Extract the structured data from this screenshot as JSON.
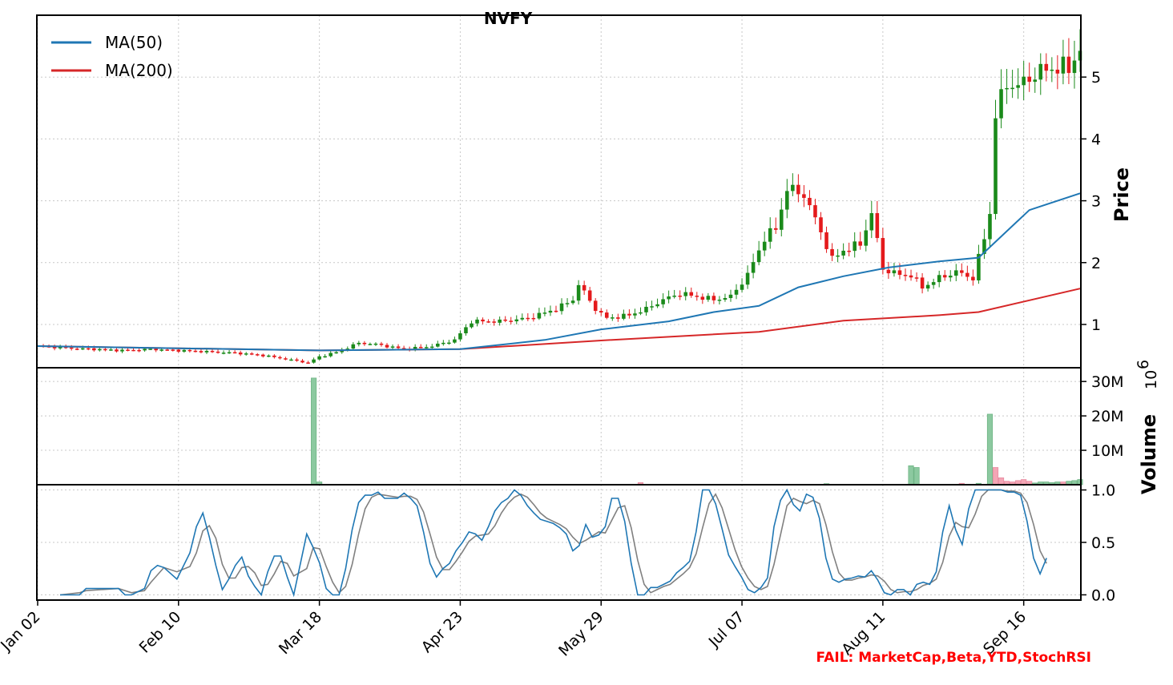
{
  "chart_data": {
    "type": "candlestick",
    "title": "NVFY",
    "price_axis": {
      "label": "Price",
      "ylim": [
        0.3,
        6.0
      ],
      "ticks": [
        1,
        2,
        3,
        4,
        5
      ],
      "grid": true
    },
    "volume_axis": {
      "label": "Volume",
      "multiplier_label": "10^6",
      "ylim": [
        0,
        34
      ],
      "ticks": [
        {
          "value": 10,
          "label": "10M"
        },
        {
          "value": 20,
          "label": "20M"
        },
        {
          "value": 30,
          "label": "30M"
        }
      ]
    },
    "stoch_axis": {
      "ylim": [
        -0.05,
        1.05
      ],
      "ticks": [
        {
          "value": 0.0,
          "label": "0.0"
        },
        {
          "value": 0.5,
          "label": "0.5"
        },
        {
          "value": 1.0,
          "label": "1.0"
        }
      ]
    },
    "x_axis": {
      "range": [
        0,
        185
      ],
      "ticks": [
        {
          "index": 0,
          "label": "Jan 02"
        },
        {
          "index": 25,
          "label": "Feb 10"
        },
        {
          "index": 50,
          "label": "Mar 18"
        },
        {
          "index": 75,
          "label": "Apr 23"
        },
        {
          "index": 100,
          "label": "May 29"
        },
        {
          "index": 125,
          "label": "Jul 07"
        },
        {
          "index": 150,
          "label": "Aug 11"
        },
        {
          "index": 175,
          "label": "Sep 16"
        }
      ]
    },
    "legend": {
      "placement": "upper-left",
      "entries": [
        {
          "name": "MA(50)",
          "color": "#1f77b4"
        },
        {
          "name": "MA(200)",
          "color": "#d62728"
        }
      ]
    },
    "colors": {
      "up": "#1a8a1a",
      "down": "#e41a1c",
      "volume_up": "#8cc9a0",
      "volume_down": "#f4a6b5",
      "stoch_k": "#1f77b4",
      "stoch_d": "#808080"
    },
    "close_anchors": [
      [
        0,
        0.65
      ],
      [
        5,
        0.62
      ],
      [
        10,
        0.6
      ],
      [
        15,
        0.58
      ],
      [
        20,
        0.6
      ],
      [
        25,
        0.58
      ],
      [
        30,
        0.56
      ],
      [
        35,
        0.54
      ],
      [
        40,
        0.5
      ],
      [
        44,
        0.44
      ],
      [
        48,
        0.38
      ],
      [
        50,
        0.48
      ],
      [
        53,
        0.55
      ],
      [
        57,
        0.7
      ],
      [
        60,
        0.68
      ],
      [
        65,
        0.6
      ],
      [
        70,
        0.65
      ],
      [
        74,
        0.75
      ],
      [
        77,
        1.05
      ],
      [
        82,
        1.05
      ],
      [
        87,
        1.1
      ],
      [
        92,
        1.25
      ],
      [
        95,
        1.4
      ],
      [
        96,
        1.65
      ],
      [
        99,
        1.25
      ],
      [
        101,
        1.1
      ],
      [
        105,
        1.15
      ],
      [
        108,
        1.25
      ],
      [
        111,
        1.4
      ],
      [
        114,
        1.5
      ],
      [
        117,
        1.45
      ],
      [
        120,
        1.4
      ],
      [
        123,
        1.45
      ],
      [
        126,
        1.8
      ],
      [
        129,
        2.4
      ],
      [
        131,
        2.55
      ],
      [
        133,
        3.2
      ],
      [
        136,
        3.1
      ],
      [
        139,
        2.5
      ],
      [
        141,
        2.05
      ],
      [
        143,
        2.2
      ],
      [
        146,
        2.3
      ],
      [
        148,
        2.8
      ],
      [
        150,
        1.9
      ],
      [
        153,
        1.8
      ],
      [
        155,
        1.8
      ],
      [
        157,
        1.6
      ],
      [
        160,
        1.75
      ],
      [
        163,
        1.85
      ],
      [
        166,
        1.75
      ],
      [
        168,
        2.4
      ],
      [
        169,
        2.8
      ],
      [
        170,
        4.4
      ],
      [
        172,
        4.9
      ],
      [
        174,
        4.85
      ],
      [
        177,
        5.05
      ],
      [
        180,
        5.15
      ],
      [
        183,
        5.15
      ],
      [
        185,
        5.45
      ]
    ],
    "ma50": [
      [
        0,
        0.65
      ],
      [
        50,
        0.58
      ],
      [
        75,
        0.6
      ],
      [
        90,
        0.75
      ],
      [
        100,
        0.92
      ],
      [
        112,
        1.05
      ],
      [
        120,
        1.2
      ],
      [
        128,
        1.3
      ],
      [
        135,
        1.6
      ],
      [
        143,
        1.78
      ],
      [
        151,
        1.92
      ],
      [
        160,
        2.02
      ],
      [
        167,
        2.08
      ],
      [
        176,
        2.85
      ],
      [
        185,
        3.12
      ]
    ],
    "ma200": [
      [
        0,
        0.65
      ],
      [
        50,
        0.58
      ],
      [
        75,
        0.6
      ],
      [
        100,
        0.74
      ],
      [
        128,
        0.88
      ],
      [
        143,
        1.06
      ],
      [
        160,
        1.15
      ],
      [
        167,
        1.2
      ],
      [
        185,
        1.58
      ]
    ],
    "volume": [
      [
        49,
        31.0,
        "up"
      ],
      [
        50,
        0.8,
        "up"
      ],
      [
        107,
        0.6,
        "down"
      ],
      [
        140,
        0.3,
        "up"
      ],
      [
        155,
        5.5,
        "up"
      ],
      [
        156,
        5.0,
        "up"
      ],
      [
        164,
        0.4,
        "down"
      ],
      [
        167,
        0.4,
        "up"
      ],
      [
        169,
        20.5,
        "up"
      ],
      [
        170,
        5.0,
        "down"
      ],
      [
        171,
        2.0,
        "down"
      ],
      [
        172,
        1.0,
        "down"
      ],
      [
        173,
        0.8,
        "down"
      ],
      [
        174,
        1.2,
        "down"
      ],
      [
        175,
        1.5,
        "down"
      ],
      [
        176,
        1.0,
        "down"
      ],
      [
        177,
        0.5,
        "up"
      ],
      [
        178,
        0.8,
        "up"
      ],
      [
        179,
        0.8,
        "up"
      ],
      [
        180,
        0.6,
        "up"
      ],
      [
        181,
        0.8,
        "up"
      ],
      [
        182,
        0.8,
        "down"
      ],
      [
        183,
        1.0,
        "up"
      ],
      [
        184,
        1.2,
        "up"
      ],
      [
        185,
        1.5,
        "up"
      ]
    ],
    "stoch_k": [
      [
        4,
        0.0
      ],
      [
        7,
        0.0
      ],
      [
        8,
        0.06
      ],
      [
        13,
        0.06
      ],
      [
        14,
        0.0
      ],
      [
        15,
        0.0
      ],
      [
        17,
        0.06
      ],
      [
        18,
        0.23
      ],
      [
        19,
        0.28
      ],
      [
        20,
        0.26
      ],
      [
        22,
        0.15
      ],
      [
        24,
        0.4
      ],
      [
        25,
        0.65
      ],
      [
        26,
        0.78
      ],
      [
        27,
        0.55
      ],
      [
        28,
        0.28
      ],
      [
        29,
        0.05
      ],
      [
        30,
        0.15
      ],
      [
        31,
        0.28
      ],
      [
        32,
        0.36
      ],
      [
        33,
        0.18
      ],
      [
        34,
        0.08
      ],
      [
        35,
        0.0
      ],
      [
        36,
        0.22
      ],
      [
        37,
        0.37
      ],
      [
        38,
        0.37
      ],
      [
        39,
        0.17
      ],
      [
        40,
        0.0
      ],
      [
        42,
        0.58
      ],
      [
        43,
        0.45
      ],
      [
        44,
        0.3
      ],
      [
        45,
        0.06
      ],
      [
        46,
        0.0
      ],
      [
        47,
        0.0
      ],
      [
        48,
        0.25
      ],
      [
        49,
        0.62
      ],
      [
        50,
        0.88
      ],
      [
        51,
        0.95
      ],
      [
        52,
        0.95
      ],
      [
        53,
        0.98
      ],
      [
        54,
        0.92
      ],
      [
        55,
        0.92
      ],
      [
        56,
        0.92
      ],
      [
        57,
        0.97
      ],
      [
        58,
        0.92
      ],
      [
        59,
        0.85
      ],
      [
        60,
        0.6
      ],
      [
        61,
        0.3
      ],
      [
        62,
        0.17
      ],
      [
        63,
        0.25
      ],
      [
        64,
        0.3
      ],
      [
        65,
        0.42
      ],
      [
        66,
        0.5
      ],
      [
        67,
        0.6
      ],
      [
        68,
        0.58
      ],
      [
        69,
        0.52
      ],
      [
        70,
        0.65
      ],
      [
        71,
        0.8
      ],
      [
        72,
        0.88
      ],
      [
        73,
        0.92
      ],
      [
        74,
        1.0
      ],
      [
        75,
        0.95
      ],
      [
        76,
        0.85
      ],
      [
        77,
        0.78
      ],
      [
        78,
        0.72
      ],
      [
        79,
        0.7
      ],
      [
        80,
        0.68
      ],
      [
        81,
        0.64
      ],
      [
        82,
        0.58
      ],
      [
        83,
        0.42
      ],
      [
        84,
        0.47
      ],
      [
        85,
        0.67
      ],
      [
        86,
        0.55
      ],
      [
        87,
        0.57
      ],
      [
        88,
        0.65
      ],
      [
        89,
        0.92
      ],
      [
        90,
        0.92
      ],
      [
        91,
        0.7
      ],
      [
        92,
        0.3
      ],
      [
        93,
        0.0
      ],
      [
        94,
        0.0
      ],
      [
        95,
        0.07
      ],
      [
        96,
        0.07
      ],
      [
        97,
        0.1
      ],
      [
        98,
        0.13
      ],
      [
        99,
        0.21
      ],
      [
        100,
        0.26
      ],
      [
        101,
        0.32
      ],
      [
        102,
        0.6
      ],
      [
        103,
        1.0
      ],
      [
        104,
        1.0
      ],
      [
        105,
        0.87
      ],
      [
        106,
        0.63
      ],
      [
        107,
        0.38
      ],
      [
        108,
        0.27
      ],
      [
        109,
        0.17
      ],
      [
        110,
        0.05
      ],
      [
        111,
        0.02
      ],
      [
        112,
        0.07
      ],
      [
        113,
        0.16
      ],
      [
        114,
        0.65
      ],
      [
        115,
        0.9
      ],
      [
        116,
        1.0
      ],
      [
        117,
        0.86
      ],
      [
        118,
        0.8
      ],
      [
        119,
        0.96
      ],
      [
        120,
        0.93
      ],
      [
        121,
        0.73
      ],
      [
        122,
        0.35
      ],
      [
        123,
        0.15
      ],
      [
        124,
        0.12
      ],
      [
        125,
        0.15
      ],
      [
        126,
        0.16
      ],
      [
        127,
        0.18
      ],
      [
        128,
        0.17
      ],
      [
        129,
        0.23
      ],
      [
        130,
        0.14
      ],
      [
        131,
        0.02
      ],
      [
        132,
        0.0
      ],
      [
        133,
        0.05
      ],
      [
        134,
        0.05
      ],
      [
        135,
        0.0
      ],
      [
        136,
        0.1
      ],
      [
        137,
        0.12
      ],
      [
        138,
        0.1
      ],
      [
        139,
        0.22
      ],
      [
        140,
        0.6
      ],
      [
        141,
        0.85
      ],
      [
        142,
        0.62
      ],
      [
        143,
        0.48
      ],
      [
        144,
        0.82
      ],
      [
        145,
        1.0
      ],
      [
        146,
        1.0
      ],
      [
        147,
        1.0
      ],
      [
        148,
        1.0
      ],
      [
        149,
        1.0
      ],
      [
        150,
        0.98
      ],
      [
        151,
        0.98
      ],
      [
        152,
        0.95
      ],
      [
        153,
        0.7
      ],
      [
        154,
        0.35
      ],
      [
        155,
        0.2
      ],
      [
        156,
        0.35
      ]
    ],
    "stoch_d": [
      [
        4,
        0.0
      ],
      [
        7,
        0.02
      ],
      [
        8,
        0.04
      ],
      [
        13,
        0.06
      ],
      [
        15,
        0.02
      ],
      [
        17,
        0.04
      ],
      [
        18,
        0.12
      ],
      [
        20,
        0.26
      ],
      [
        22,
        0.22
      ],
      [
        24,
        0.27
      ],
      [
        25,
        0.4
      ],
      [
        26,
        0.61
      ],
      [
        27,
        0.66
      ],
      [
        28,
        0.54
      ],
      [
        29,
        0.29
      ],
      [
        30,
        0.16
      ],
      [
        31,
        0.16
      ],
      [
        32,
        0.26
      ],
      [
        33,
        0.27
      ],
      [
        34,
        0.21
      ],
      [
        35,
        0.09
      ],
      [
        36,
        0.1
      ],
      [
        37,
        0.2
      ],
      [
        38,
        0.32
      ],
      [
        39,
        0.3
      ],
      [
        40,
        0.18
      ],
      [
        42,
        0.25
      ],
      [
        43,
        0.45
      ],
      [
        44,
        0.44
      ],
      [
        45,
        0.27
      ],
      [
        46,
        0.12
      ],
      [
        47,
        0.02
      ],
      [
        48,
        0.08
      ],
      [
        49,
        0.29
      ],
      [
        50,
        0.58
      ],
      [
        51,
        0.82
      ],
      [
        52,
        0.93
      ],
      [
        53,
        0.96
      ],
      [
        54,
        0.95
      ],
      [
        55,
        0.94
      ],
      [
        56,
        0.93
      ],
      [
        57,
        0.94
      ],
      [
        58,
        0.94
      ],
      [
        59,
        0.91
      ],
      [
        60,
        0.79
      ],
      [
        61,
        0.58
      ],
      [
        62,
        0.36
      ],
      [
        63,
        0.24
      ],
      [
        64,
        0.24
      ],
      [
        65,
        0.32
      ],
      [
        66,
        0.41
      ],
      [
        67,
        0.51
      ],
      [
        68,
        0.56
      ],
      [
        69,
        0.57
      ],
      [
        70,
        0.58
      ],
      [
        71,
        0.66
      ],
      [
        72,
        0.78
      ],
      [
        73,
        0.87
      ],
      [
        74,
        0.93
      ],
      [
        75,
        0.96
      ],
      [
        76,
        0.93
      ],
      [
        77,
        0.86
      ],
      [
        78,
        0.78
      ],
      [
        79,
        0.73
      ],
      [
        80,
        0.7
      ],
      [
        81,
        0.67
      ],
      [
        82,
        0.63
      ],
      [
        83,
        0.55
      ],
      [
        84,
        0.49
      ],
      [
        85,
        0.52
      ],
      [
        86,
        0.56
      ],
      [
        87,
        0.6
      ],
      [
        88,
        0.59
      ],
      [
        89,
        0.71
      ],
      [
        90,
        0.83
      ],
      [
        91,
        0.85
      ],
      [
        92,
        0.64
      ],
      [
        93,
        0.33
      ],
      [
        94,
        0.1
      ],
      [
        95,
        0.02
      ],
      [
        96,
        0.05
      ],
      [
        97,
        0.08
      ],
      [
        98,
        0.1
      ],
      [
        99,
        0.15
      ],
      [
        100,
        0.2
      ],
      [
        101,
        0.26
      ],
      [
        102,
        0.39
      ],
      [
        103,
        0.64
      ],
      [
        104,
        0.87
      ],
      [
        105,
        0.96
      ],
      [
        106,
        0.83
      ],
      [
        107,
        0.63
      ],
      [
        108,
        0.43
      ],
      [
        109,
        0.27
      ],
      [
        110,
        0.16
      ],
      [
        111,
        0.08
      ],
      [
        112,
        0.05
      ],
      [
        113,
        0.08
      ],
      [
        114,
        0.29
      ],
      [
        115,
        0.57
      ],
      [
        116,
        0.85
      ],
      [
        117,
        0.92
      ],
      [
        118,
        0.89
      ],
      [
        119,
        0.87
      ],
      [
        120,
        0.9
      ],
      [
        121,
        0.87
      ],
      [
        122,
        0.67
      ],
      [
        123,
        0.41
      ],
      [
        124,
        0.21
      ],
      [
        125,
        0.14
      ],
      [
        126,
        0.14
      ],
      [
        127,
        0.16
      ],
      [
        128,
        0.17
      ],
      [
        129,
        0.19
      ],
      [
        130,
        0.18
      ],
      [
        131,
        0.13
      ],
      [
        132,
        0.05
      ],
      [
        133,
        0.02
      ],
      [
        134,
        0.03
      ],
      [
        135,
        0.03
      ],
      [
        136,
        0.05
      ],
      [
        137,
        0.09
      ],
      [
        138,
        0.11
      ],
      [
        139,
        0.15
      ],
      [
        140,
        0.31
      ],
      [
        141,
        0.56
      ],
      [
        142,
        0.69
      ],
      [
        143,
        0.65
      ],
      [
        144,
        0.64
      ],
      [
        145,
        0.77
      ],
      [
        146,
        0.94
      ],
      [
        147,
        1.0
      ],
      [
        148,
        1.0
      ],
      [
        149,
        1.0
      ],
      [
        150,
        0.99
      ],
      [
        151,
        0.99
      ],
      [
        152,
        0.97
      ],
      [
        153,
        0.88
      ],
      [
        154,
        0.67
      ],
      [
        155,
        0.42
      ],
      [
        156,
        0.3
      ]
    ]
  },
  "footer": {
    "fail_text": "FAIL: MarketCap,Beta,YTD,StochRSI",
    "fail_color": "#ff0000"
  }
}
